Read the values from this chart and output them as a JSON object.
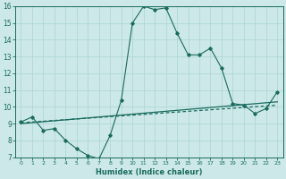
{
  "xlabel": "Humidex (Indice chaleur)",
  "xlim": [
    -0.5,
    23.5
  ],
  "ylim": [
    7,
    16
  ],
  "yticks": [
    7,
    8,
    9,
    10,
    11,
    12,
    13,
    14,
    15,
    16
  ],
  "xticks": [
    0,
    1,
    2,
    3,
    4,
    5,
    6,
    7,
    8,
    9,
    10,
    11,
    12,
    13,
    14,
    15,
    16,
    17,
    18,
    19,
    20,
    21,
    22,
    23
  ],
  "background_color": "#cce8e8",
  "grid_color": "#b0d8d8",
  "line_color": "#1a6b5e",
  "line1_x": [
    0,
    1,
    2,
    3,
    4,
    5,
    6,
    7,
    8,
    9,
    10,
    11,
    12,
    13,
    14,
    15,
    16,
    17,
    18,
    19,
    20,
    21,
    22,
    23
  ],
  "line1_y": [
    9.1,
    9.4,
    8.6,
    8.7,
    8.0,
    7.5,
    7.1,
    6.9,
    8.3,
    10.4,
    15.0,
    16.0,
    15.8,
    15.9,
    14.4,
    13.1,
    13.1,
    13.5,
    12.3,
    10.2,
    10.1,
    9.6,
    9.9,
    10.9
  ],
  "line2_x": [
    0,
    23
  ],
  "line2_y": [
    9.0,
    10.3
  ],
  "line3_x": [
    0,
    23
  ],
  "line3_y": [
    9.05,
    10.1
  ]
}
